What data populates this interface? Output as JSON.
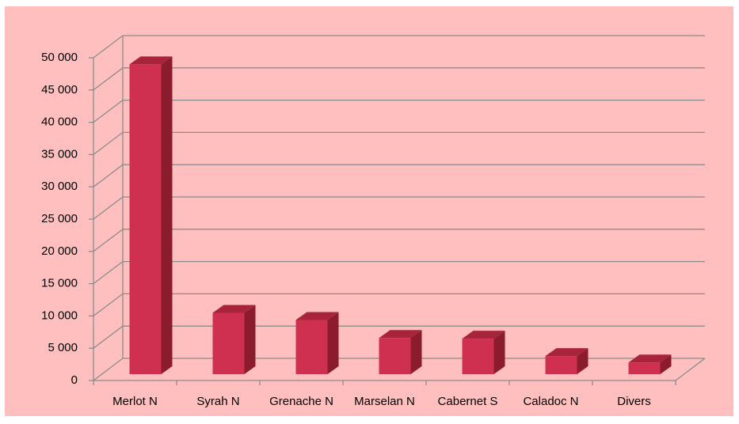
{
  "chart_data": {
    "type": "bar3d",
    "categories": [
      "Merlot N",
      "Syrah N",
      "Grenache N",
      "Marselan N",
      "Cabernet S",
      "Caladoc N",
      "Divers"
    ],
    "values": [
      48000,
      9500,
      8400,
      5600,
      5500,
      2800,
      1800
    ],
    "color": "#d0304f",
    "ylim": [
      0,
      50000
    ],
    "yticks": [
      0,
      {
        "value": 5000,
        "label": "5 000"
      },
      {
        "value": 10000,
        "label": "10 000"
      },
      {
        "value": 15000,
        "label": "15 000"
      },
      {
        "value": 20000,
        "label": "20 000"
      },
      {
        "value": 25000,
        "label": "25 000"
      },
      {
        "value": 30000,
        "label": "30 000"
      },
      {
        "value": 35000,
        "label": "35 000"
      },
      {
        "value": 40000,
        "label": "40 000"
      },
      {
        "value": 45000,
        "label": "45 000"
      },
      {
        "value": 50000,
        "label": "50 000"
      }
    ],
    "grid": true
  }
}
